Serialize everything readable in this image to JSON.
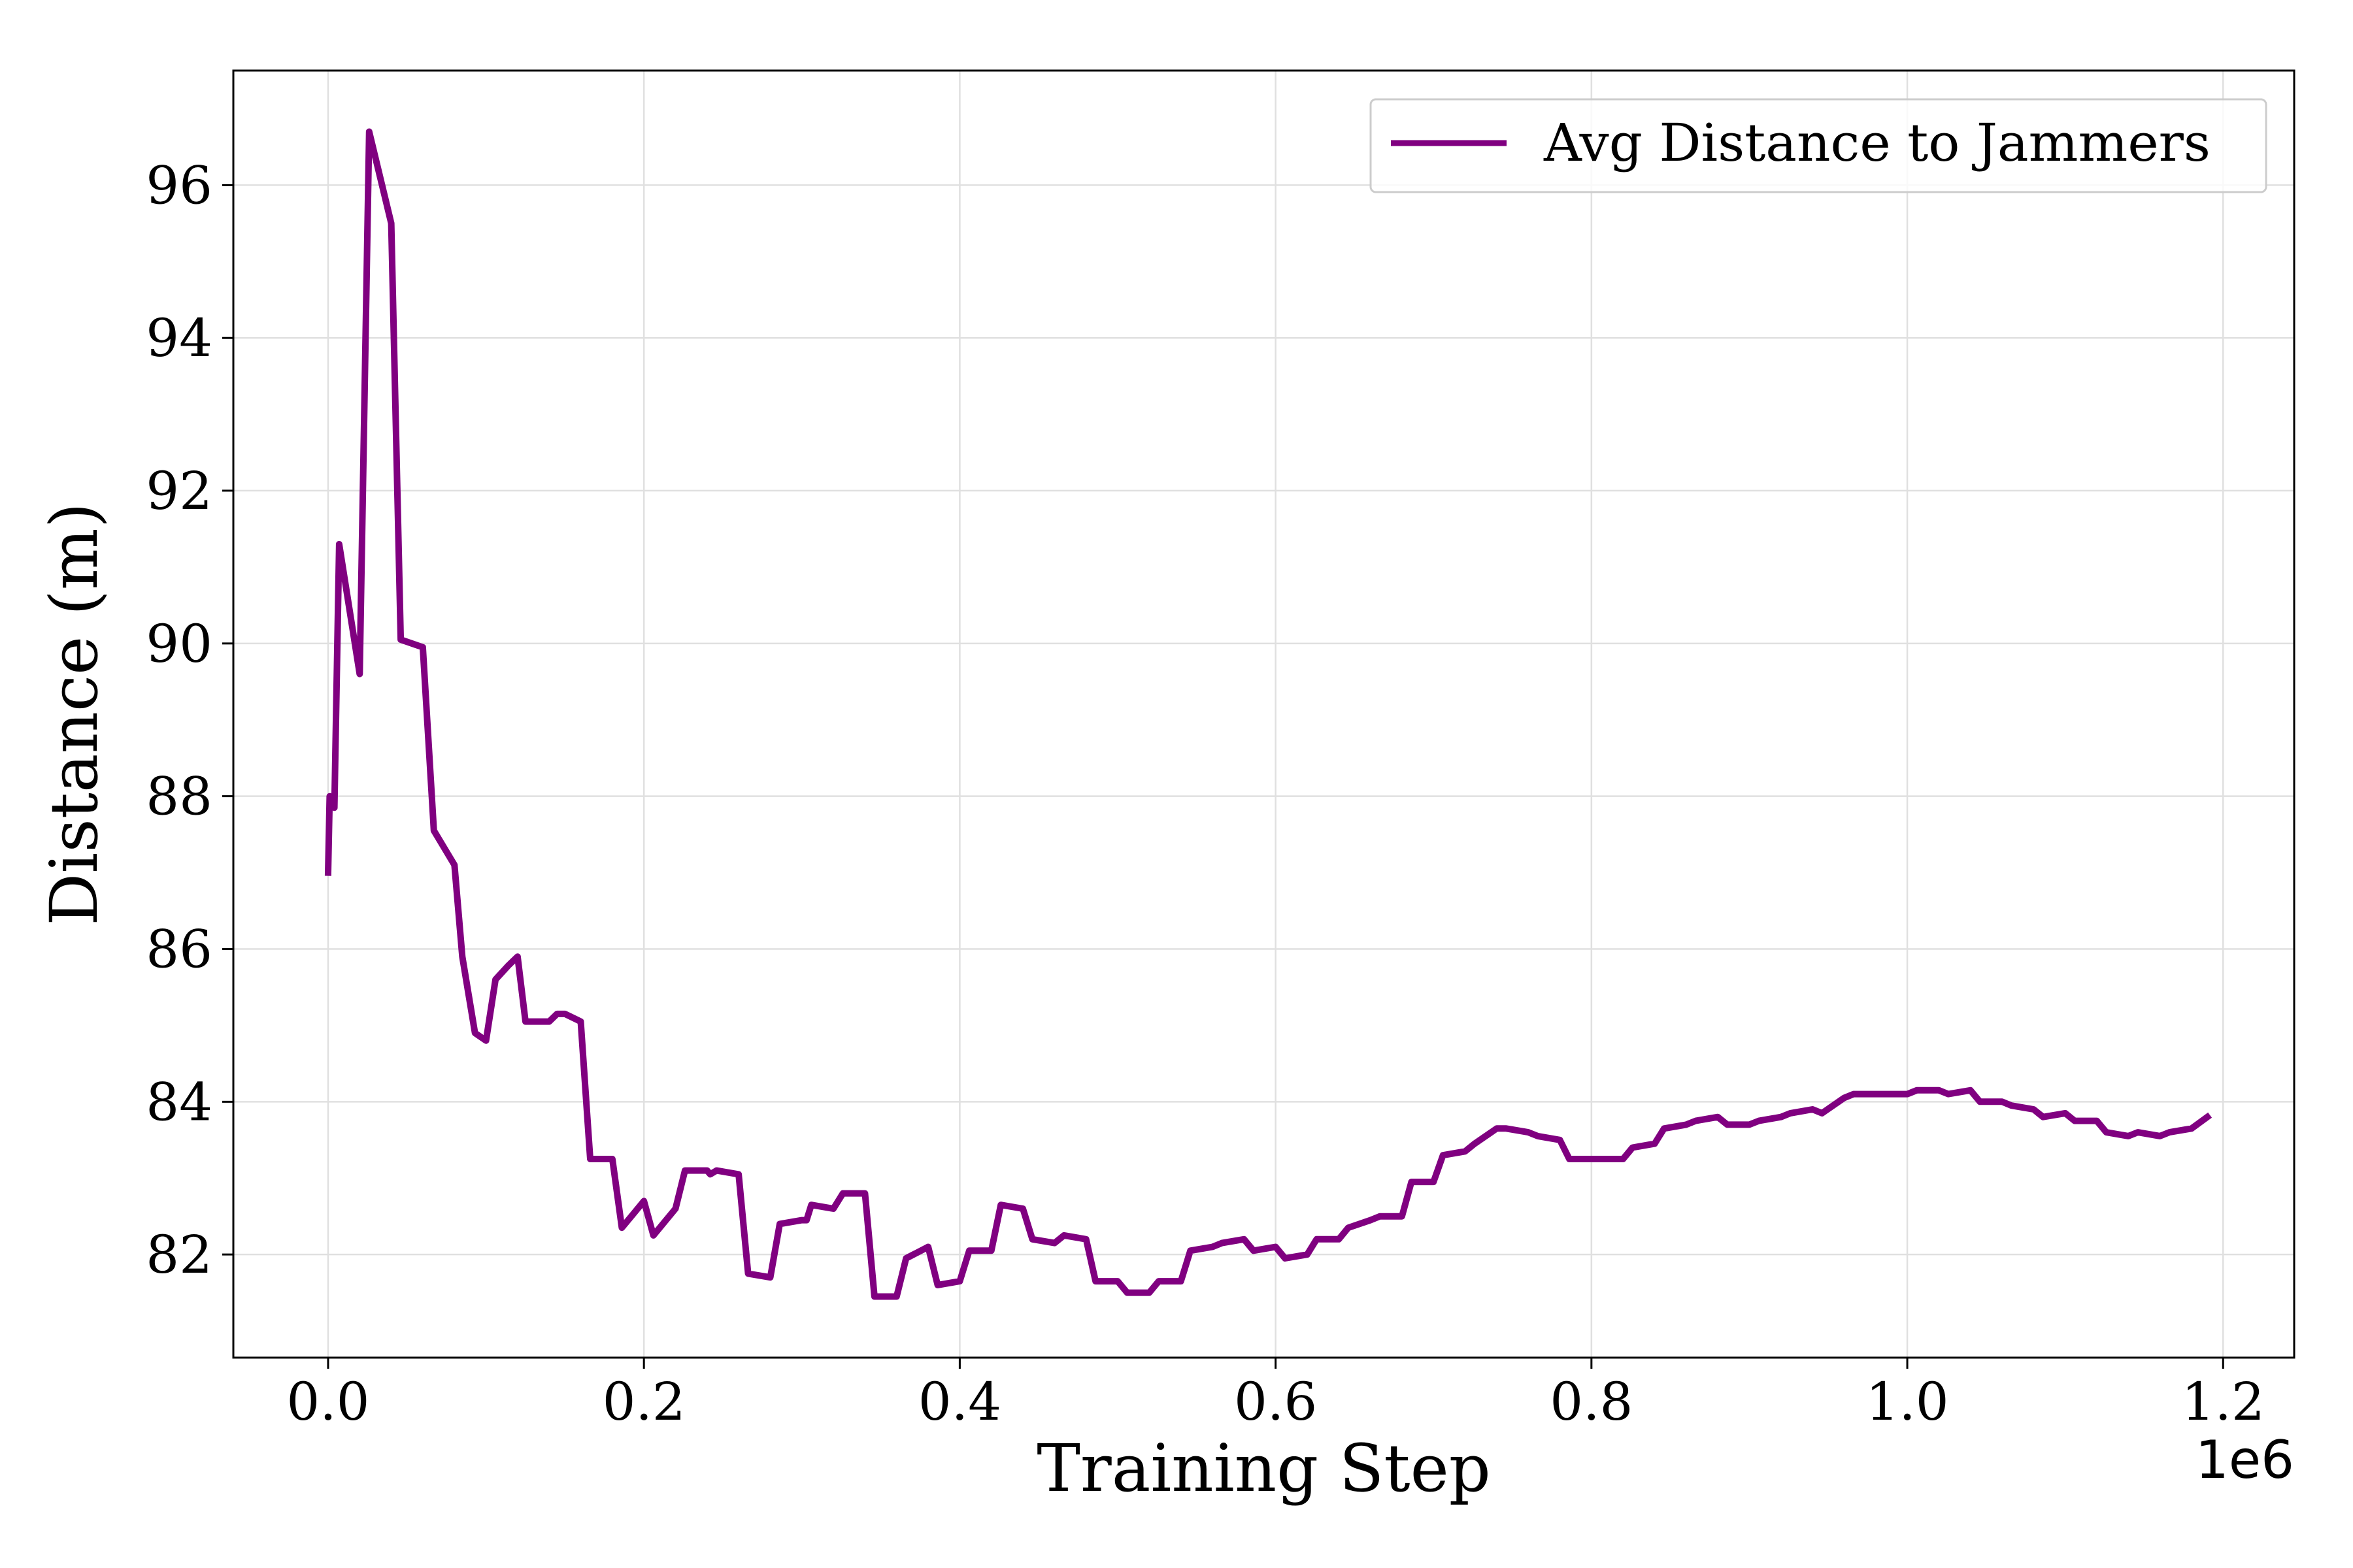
{
  "chart_data": {
    "type": "line",
    "title": "",
    "xlabel": "Training Step",
    "ylabel": "Distance (m)",
    "x_offset_label": "1e6",
    "xlim": [
      -0.06,
      1.245
    ],
    "ylim": [
      80.65,
      97.5
    ],
    "xticks": [
      0.0,
      0.2,
      0.4,
      0.6,
      0.8,
      1.0,
      1.2
    ],
    "xtick_labels": [
      "0.0",
      "0.2",
      "0.4",
      "0.6",
      "0.8",
      "1.0",
      "1.2"
    ],
    "yticks": [
      82,
      84,
      86,
      88,
      90,
      92,
      94,
      96
    ],
    "ytick_labels": [
      "82",
      "84",
      "86",
      "88",
      "90",
      "92",
      "94",
      "96"
    ],
    "grid": true,
    "legend_position": "top-right",
    "series": [
      {
        "name": "Avg Distance to Jammers",
        "color": "#800080",
        "x": [
          0.0,
          0.001,
          0.004,
          0.007,
          0.02,
          0.026,
          0.04,
          0.046,
          0.06,
          0.067,
          0.08,
          0.085,
          0.093,
          0.1,
          0.106,
          0.114,
          0.12,
          0.125,
          0.133,
          0.14,
          0.145,
          0.15,
          0.16,
          0.166,
          0.18,
          0.186,
          0.194,
          0.2,
          0.206,
          0.214,
          0.22,
          0.226,
          0.24,
          0.242,
          0.246,
          0.26,
          0.266,
          0.28,
          0.286,
          0.3,
          0.303,
          0.306,
          0.32,
          0.326,
          0.34,
          0.346,
          0.36,
          0.366,
          0.38,
          0.386,
          0.4,
          0.406,
          0.42,
          0.426,
          0.44,
          0.446,
          0.46,
          0.466,
          0.48,
          0.486,
          0.5,
          0.506,
          0.52,
          0.526,
          0.54,
          0.546,
          0.56,
          0.566,
          0.58,
          0.586,
          0.6,
          0.606,
          0.62,
          0.626,
          0.64,
          0.646,
          0.66,
          0.666,
          0.68,
          0.686,
          0.7,
          0.706,
          0.72,
          0.726,
          0.74,
          0.746,
          0.76,
          0.766,
          0.78,
          0.786,
          0.8,
          0.806,
          0.82,
          0.826,
          0.84,
          0.846,
          0.86,
          0.866,
          0.88,
          0.886,
          0.9,
          0.906,
          0.92,
          0.926,
          0.94,
          0.946,
          0.96,
          0.966,
          0.98,
          0.986,
          1.0,
          1.006,
          1.02,
          1.026,
          1.04,
          1.046,
          1.06,
          1.066,
          1.08,
          1.086,
          1.1,
          1.106,
          1.12,
          1.126,
          1.14,
          1.146,
          1.16,
          1.166,
          1.18,
          1.19
        ],
        "values": [
          87.0,
          88.0,
          87.85,
          91.3,
          89.6,
          96.7,
          95.5,
          90.05,
          89.95,
          87.55,
          87.1,
          85.9,
          84.9,
          84.8,
          85.6,
          85.78,
          85.9,
          85.05,
          85.05,
          85.05,
          85.15,
          85.15,
          85.05,
          83.25,
          83.25,
          82.35,
          82.55,
          82.7,
          82.25,
          82.45,
          82.6,
          83.1,
          83.1,
          83.05,
          83.1,
          83.05,
          81.75,
          81.7,
          82.4,
          82.45,
          82.45,
          82.65,
          82.6,
          82.8,
          82.8,
          81.45,
          81.45,
          81.95,
          82.1,
          81.6,
          81.65,
          82.05,
          82.05,
          82.65,
          82.6,
          82.2,
          82.15,
          82.25,
          82.2,
          81.65,
          81.65,
          81.5,
          81.5,
          81.65,
          81.65,
          82.05,
          82.1,
          82.15,
          82.2,
          82.05,
          82.1,
          81.95,
          82.0,
          82.2,
          82.2,
          82.35,
          82.45,
          82.5,
          82.5,
          82.95,
          82.95,
          83.3,
          83.35,
          83.45,
          83.65,
          83.65,
          83.6,
          83.55,
          83.5,
          83.25,
          83.25,
          83.25,
          83.25,
          83.4,
          83.45,
          83.65,
          83.7,
          83.75,
          83.8,
          83.7,
          83.7,
          83.75,
          83.8,
          83.85,
          83.9,
          83.85,
          84.05,
          84.1,
          84.1,
          84.1,
          84.1,
          84.15,
          84.15,
          84.1,
          84.15,
          84.0,
          84.0,
          83.95,
          83.9,
          83.8,
          83.85,
          83.75,
          83.75,
          83.6,
          83.55,
          83.6,
          83.55,
          83.6,
          83.65,
          83.8
        ]
      }
    ]
  }
}
